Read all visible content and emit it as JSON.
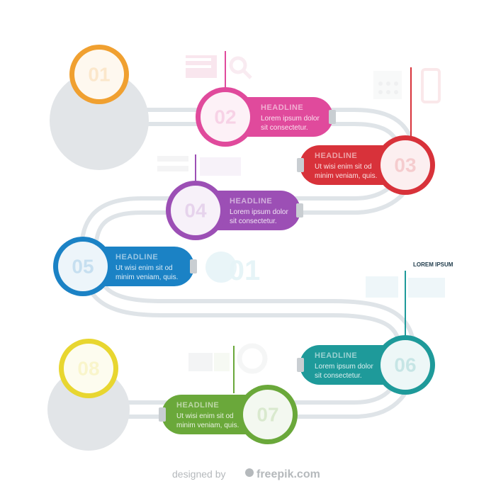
{
  "steps": [
    {
      "number": "01",
      "color": "#f0a030"
    },
    {
      "number": "02",
      "color": "#e04a9c",
      "headline": "HEADLINE",
      "line1": "Lorem ipsum dolor",
      "line2": "sit consectetur."
    },
    {
      "number": "03",
      "color": "#d8323a",
      "headline": "HEADLINE",
      "line1": "Ut wisi enim sit od",
      "line2": "minim veniam, quis."
    },
    {
      "number": "04",
      "color": "#9c4fb5",
      "headline": "HEADLINE",
      "line1": "Lorem ipsum dolor",
      "line2": "sit consectetur."
    },
    {
      "number": "05",
      "color": "#1b82c5",
      "headline": "HEADLINE",
      "line1": "Ut wisi enim sit od",
      "line2": "minim veniam, quis."
    },
    {
      "number": "06",
      "color": "#1e9a9a",
      "headline": "HEADLINE",
      "line1": "Lorem ipsum dolor",
      "line2": "sit consectetur."
    },
    {
      "number": "07",
      "color": "#6aa83a",
      "headline": "HEADLINE",
      "line1": "Ut wisi enim sit od",
      "line2": "minim veniam, quis."
    },
    {
      "number": "08",
      "color": "#e8d630"
    }
  ],
  "decor_number": "01",
  "lorem_label": "LOREM IPSUM",
  "credit": {
    "designed_by": "designed by",
    "brand": "freepik.com"
  }
}
